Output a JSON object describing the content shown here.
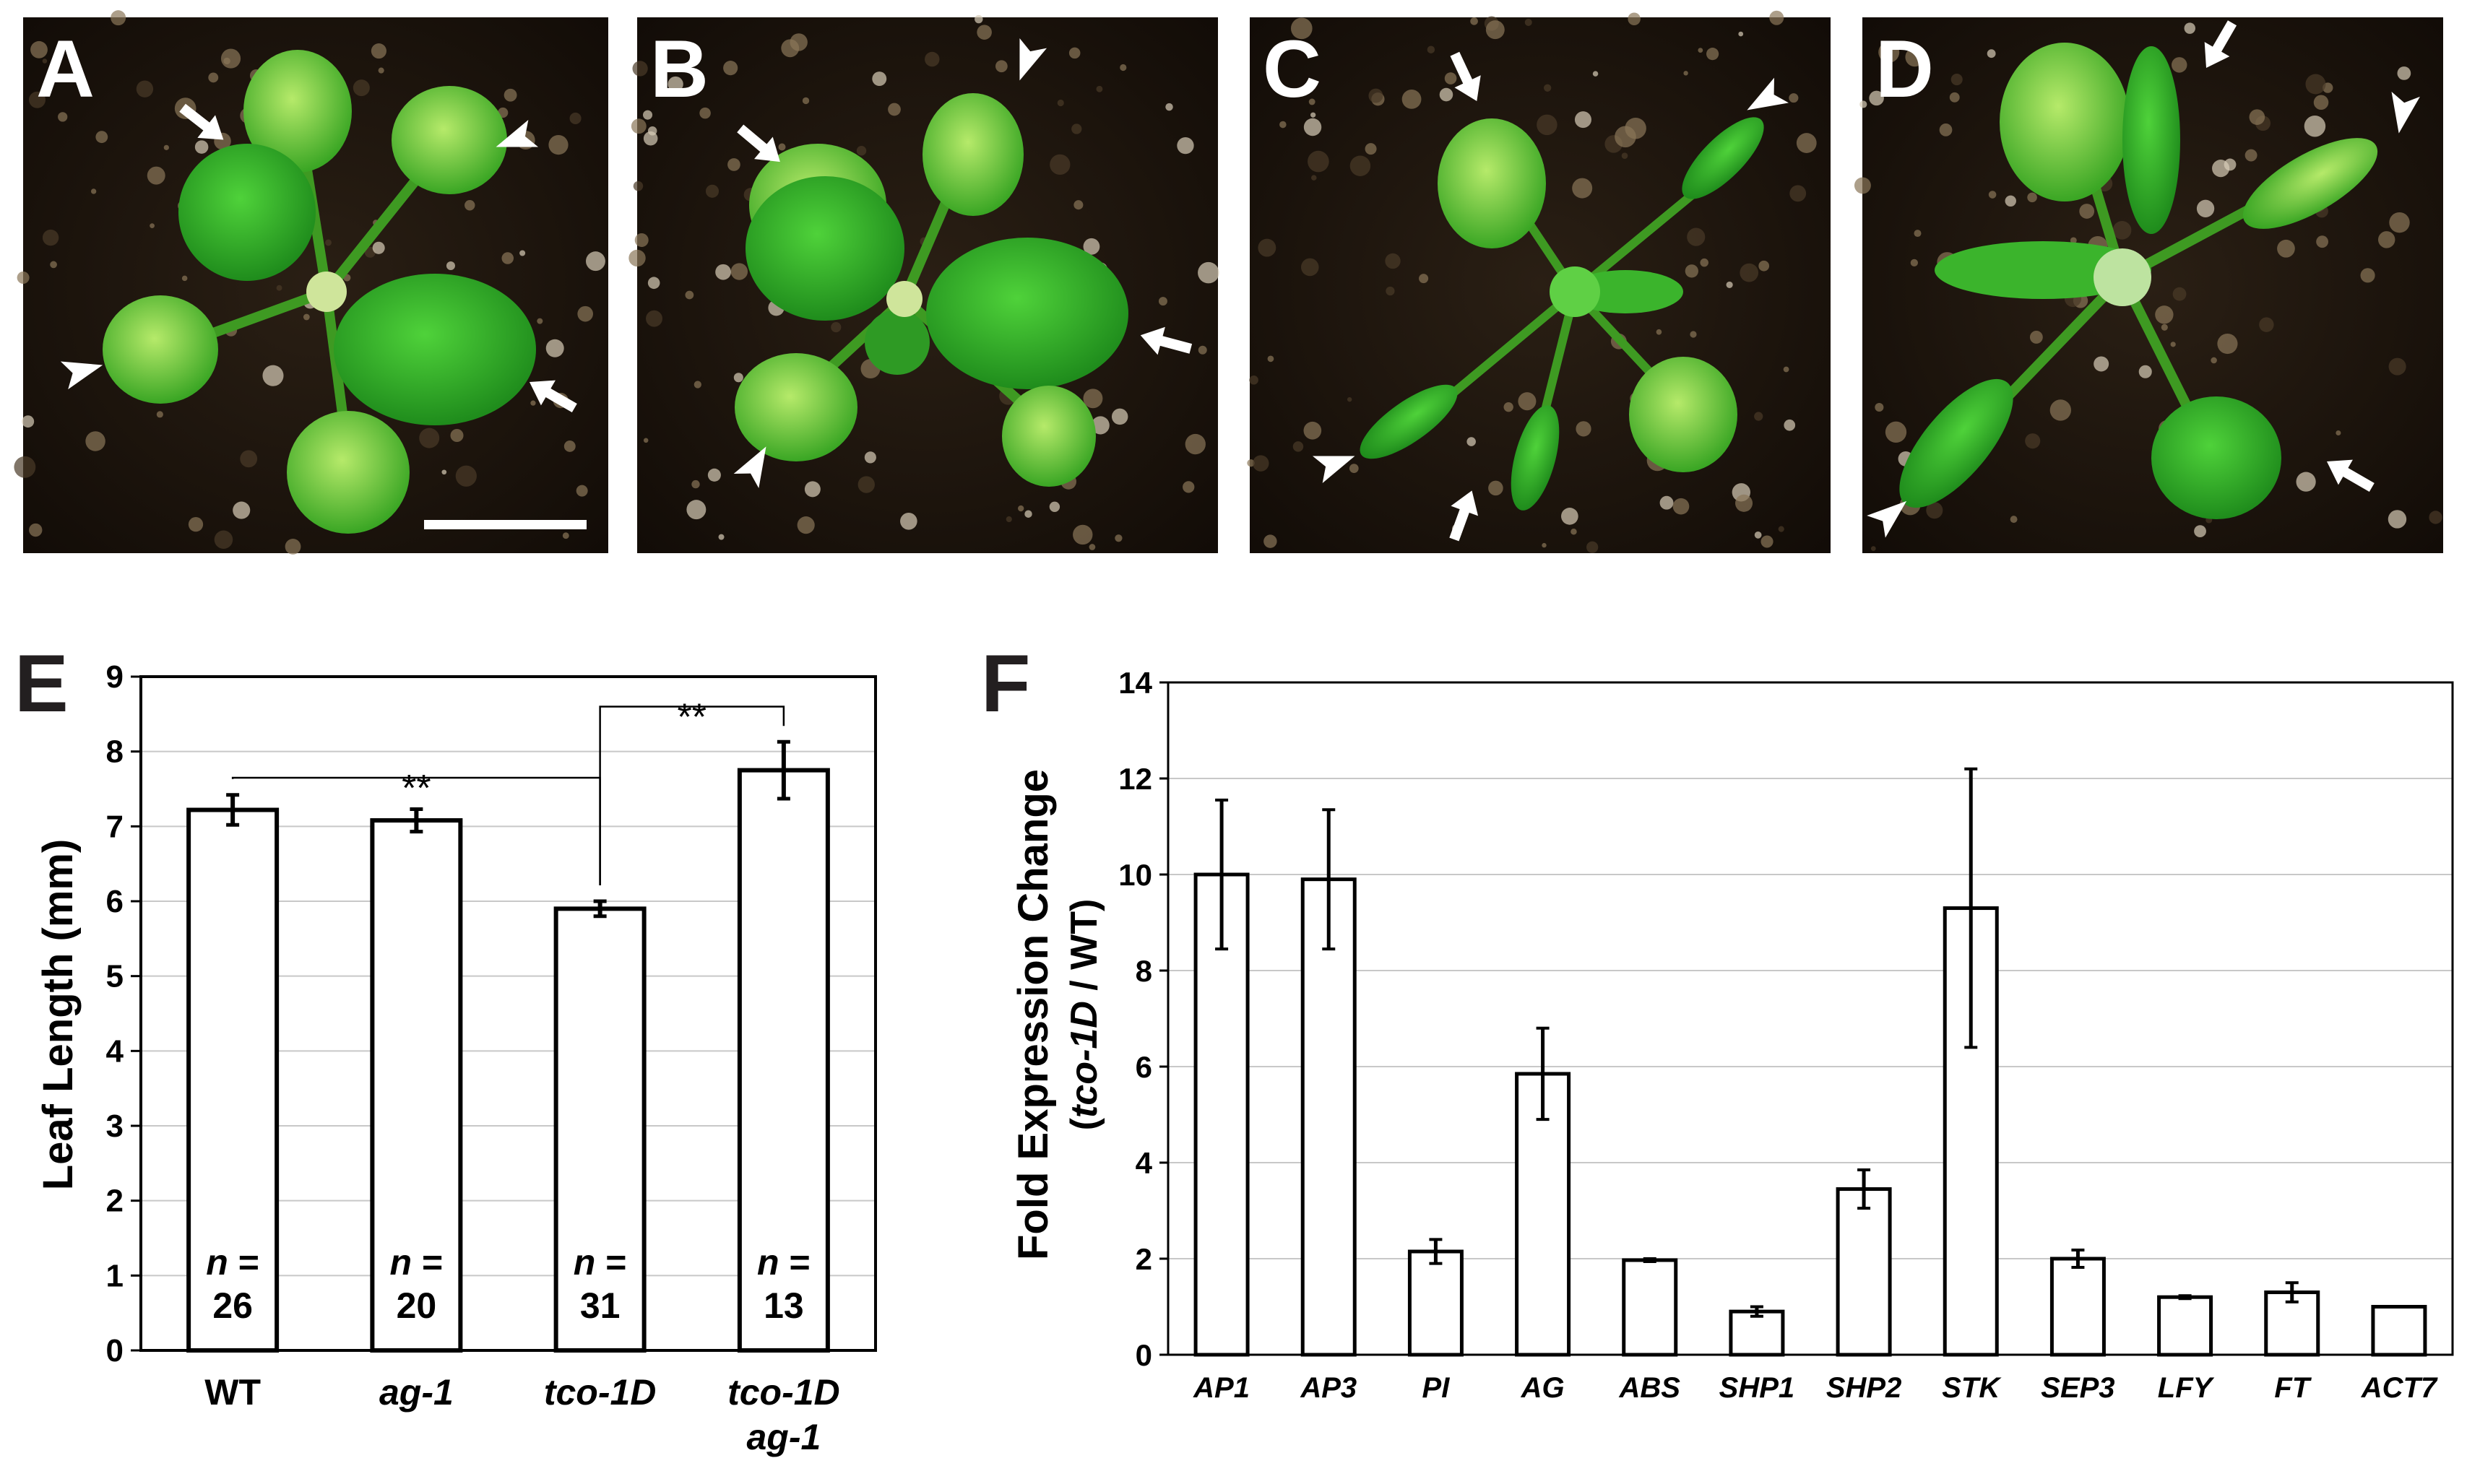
{
  "panels": {
    "A": "A",
    "B": "B",
    "C": "C",
    "D": "D",
    "E": "E",
    "F": "F"
  },
  "photos": [
    {
      "letter": "A",
      "leaf_shape": "round",
      "description": "rosette"
    },
    {
      "letter": "B",
      "leaf_shape": "round",
      "description": "rosette"
    },
    {
      "letter": "C",
      "leaf_shape": "curled",
      "description": "rosette"
    },
    {
      "letter": "D",
      "leaf_shape": "curled",
      "description": "rosette"
    }
  ],
  "colors": {
    "soil": "#1b140e",
    "leaf_light": "#8fd83a",
    "leaf_dark": "#2fa31f",
    "bar_fill": "#ffffff",
    "bar_stroke": "#000000",
    "grid": "#c8c8c8"
  },
  "chart_data": [
    {
      "type": "bar",
      "panel": "E",
      "categories": [
        "WT",
        "ag-1",
        "tco-1D",
        "tco-1D ag-1"
      ],
      "category_lines": [
        [
          "WT"
        ],
        [
          "ag-1"
        ],
        [
          "tco-1D"
        ],
        [
          "tco-1D",
          "ag-1"
        ]
      ],
      "category_italic": [
        false,
        true,
        true,
        true
      ],
      "values": [
        7.22,
        7.08,
        5.9,
        7.75
      ],
      "errors": [
        0.2,
        0.15,
        0.1,
        0.38
      ],
      "n_prefix": "n",
      "n_values": [
        "26",
        "20",
        "31",
        "13"
      ],
      "ylabel": "Leaf Length (mm)",
      "ylim": [
        0,
        9
      ],
      "yticks": [
        0,
        1,
        2,
        3,
        4,
        5,
        6,
        7,
        8,
        9
      ],
      "grid": true,
      "significance": [
        {
          "between": [
            0,
            2
          ],
          "label": "**"
        },
        {
          "between": [
            2,
            3
          ],
          "label": "**"
        }
      ]
    },
    {
      "type": "bar",
      "panel": "F",
      "categories": [
        "AP1",
        "AP3",
        "PI",
        "AG",
        "ABS",
        "SHP1",
        "SHP2",
        "STK",
        "SEP3",
        "LFY",
        "FT",
        "ACT7"
      ],
      "values": [
        10.0,
        9.9,
        2.15,
        5.85,
        1.97,
        0.9,
        3.45,
        9.3,
        2.0,
        1.2,
        1.3,
        1.0
      ],
      "errors": [
        1.55,
        1.45,
        0.25,
        0.95,
        0.03,
        0.1,
        0.4,
        2.9,
        0.18,
        0.03,
        0.2,
        0.0
      ],
      "ylabel": "Fold Expression Change",
      "ylabel2_prefix": "(",
      "ylabel2_italic": "tco-1D",
      "ylabel2_suffix": " / WT)",
      "ylim": [
        0,
        14
      ],
      "yticks": [
        0,
        2,
        4,
        6,
        8,
        10,
        12,
        14
      ],
      "grid": true
    }
  ]
}
